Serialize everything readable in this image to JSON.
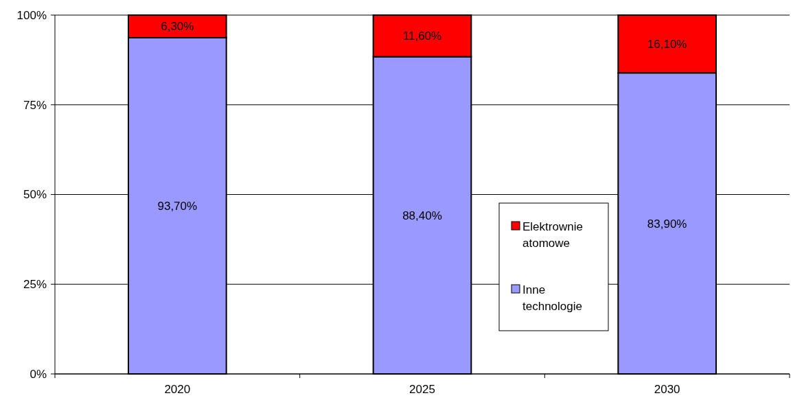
{
  "chart_data": {
    "type": "bar",
    "stacked": true,
    "categories": [
      "2020",
      "2025",
      "2030"
    ],
    "series": [
      {
        "name": "Inne technologie",
        "color": "#9999ff",
        "values": [
          93.7,
          88.4,
          83.9
        ],
        "value_labels": [
          "93,70%",
          "88,40%",
          "83,90%"
        ]
      },
      {
        "name": "Elektrownie atomowe",
        "color": "#ff0000",
        "values": [
          6.3,
          11.6,
          16.1
        ],
        "value_labels": [
          "6,30%",
          "11,60%",
          "16,10%"
        ]
      }
    ],
    "ylim": [
      0,
      100
    ],
    "yticks": [
      {
        "value": 0,
        "label": "0%"
      },
      {
        "value": 25,
        "label": "25%"
      },
      {
        "value": 50,
        "label": "50%"
      },
      {
        "value": 75,
        "label": "75%"
      },
      {
        "value": 100,
        "label": "100%"
      }
    ],
    "grid": "y",
    "legend": "right"
  }
}
